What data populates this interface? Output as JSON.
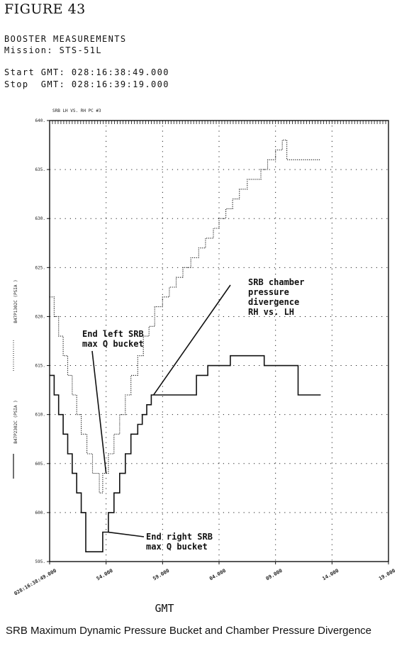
{
  "figure_label": "FIGURE 43",
  "header": {
    "title": "BOOSTER MEASUREMENTS",
    "mission": "Mission: STS-51L",
    "start": "Start GMT: 028:16:38:49.000",
    "stop": "Stop  GMT: 028:16:39:19.000"
  },
  "caption": "SRB Maximum Dynamic Pressure Bucket and Chamber Pressure Divergence",
  "chart_data": {
    "type": "line",
    "title": "SRB LH VS. RH PC #3",
    "xlabel": "GMT",
    "ylabel": "",
    "x_ticks": [
      "028:16:38:49.000",
      "54.000",
      "59.000",
      "04.000",
      "09.000",
      "14.000",
      "19.000"
    ],
    "y_ticks": [
      "595.",
      "600.",
      "605.",
      "610.",
      "615.",
      "620.",
      "625.",
      "630.",
      "635.",
      "640."
    ],
    "xlim": [
      0,
      30
    ],
    "ylim": [
      595,
      640
    ],
    "grid": true,
    "legend": [
      {
        "label": "B47P1302C (PSIA )",
        "style": "dotted"
      },
      {
        "label": "B47P2302C (PSIA )",
        "style": "solid"
      }
    ],
    "series": [
      {
        "name": "B47P1302C",
        "style": "dotted",
        "x": [
          0.0,
          0.4,
          0.4,
          0.8,
          0.8,
          1.2,
          1.2,
          1.6,
          1.6,
          2.0,
          2.0,
          2.4,
          2.4,
          2.8,
          2.8,
          3.3,
          3.3,
          3.8,
          3.8,
          4.4,
          4.4,
          4.7,
          4.7,
          5.2,
          5.2,
          5.7,
          5.7,
          6.2,
          6.2,
          6.7,
          6.7,
          7.2,
          7.2,
          7.8,
          7.8,
          8.3,
          8.3,
          8.8,
          8.8,
          9.3,
          9.3,
          10.0,
          10.0,
          10.6,
          10.6,
          11.2,
          11.2,
          11.8,
          11.8,
          12.5,
          12.5,
          13.2,
          13.2,
          13.8,
          13.8,
          14.5,
          14.5,
          15.0,
          15.0,
          15.6,
          15.6,
          16.2,
          16.2,
          16.8,
          16.8,
          17.5,
          17.5,
          18.1,
          18.1,
          18.7,
          18.7,
          19.3,
          19.3,
          20.0,
          20.0,
          20.6,
          20.6,
          21.0,
          21.0,
          21.5,
          21.5,
          22.0,
          22.0,
          22.5,
          22.5,
          24.0
        ],
        "values": [
          622,
          622,
          620,
          620,
          618,
          618,
          616,
          616,
          614,
          614,
          612,
          612,
          610,
          610,
          608,
          608,
          606,
          606,
          604,
          604,
          602,
          602,
          604,
          604,
          606,
          606,
          608,
          608,
          610,
          610,
          612,
          612,
          614,
          614,
          616,
          616,
          618,
          618,
          619,
          619,
          621,
          621,
          622,
          622,
          623,
          623,
          624,
          624,
          625,
          625,
          626,
          626,
          627,
          627,
          628,
          628,
          629,
          629,
          630,
          630,
          631,
          631,
          632,
          632,
          633,
          633,
          634,
          634,
          634,
          634,
          635,
          635,
          636,
          636,
          637,
          637,
          638,
          638,
          636,
          636,
          636,
          636,
          636,
          636,
          636,
          636
        ]
      },
      {
        "name": "B47P2302C",
        "style": "solid",
        "x": [
          0.0,
          0.4,
          0.4,
          0.8,
          0.8,
          1.2,
          1.2,
          1.6,
          1.6,
          2.0,
          2.0,
          2.4,
          2.4,
          2.8,
          2.8,
          3.2,
          3.2,
          4.7,
          4.7,
          5.2,
          5.2,
          5.7,
          5.7,
          6.2,
          6.2,
          6.7,
          6.7,
          7.2,
          7.2,
          7.8,
          7.8,
          8.2,
          8.2,
          8.6,
          8.6,
          9.0,
          9.0,
          12.0,
          12.0,
          13.0,
          13.0,
          14.0,
          14.0,
          16.0,
          16.0,
          18.0,
          18.0,
          19.0,
          19.0,
          22.0,
          22.0,
          24.0
        ],
        "values": [
          614,
          614,
          612,
          612,
          610,
          610,
          608,
          608,
          606,
          606,
          604,
          604,
          602,
          602,
          600,
          600,
          596,
          596,
          598,
          598,
          600,
          600,
          602,
          602,
          604,
          604,
          606,
          606,
          608,
          608,
          609,
          609,
          610,
          610,
          611,
          611,
          612,
          612,
          612,
          612,
          614,
          614,
          615,
          615,
          616,
          616,
          616,
          616,
          615,
          615,
          612,
          612
        ]
      }
    ],
    "annotations": [
      {
        "lines": [
          "End left SRB",
          "max Q bucket"
        ]
      },
      {
        "lines": [
          "SRB chamber",
          "pressure",
          "divergence",
          "RH vs. LH"
        ]
      },
      {
        "lines": [
          "End right SRB",
          "max Q bucket"
        ]
      }
    ]
  }
}
